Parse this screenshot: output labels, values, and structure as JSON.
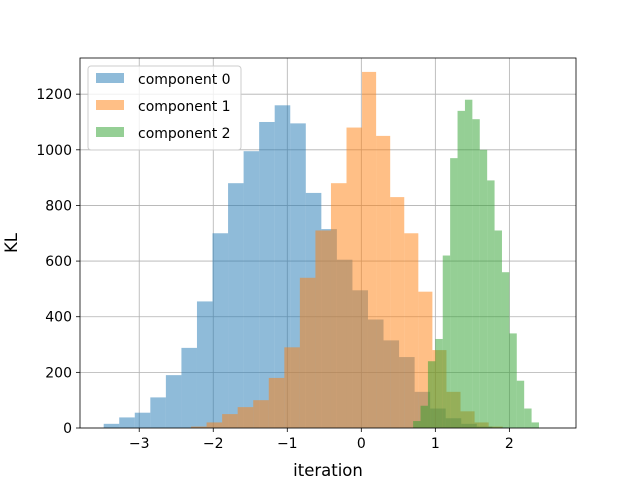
{
  "chart_data": {
    "type": "histogram",
    "title": "",
    "xlabel": "iteration",
    "ylabel": "KL",
    "xlim": [
      -3.8,
      2.9
    ],
    "ylim": [
      0,
      1330
    ],
    "xticks": [
      -3,
      -2,
      -1,
      0,
      1,
      2
    ],
    "yticks": [
      0,
      200,
      400,
      600,
      800,
      1000,
      1200
    ],
    "grid": true,
    "legend_position": "upper-left",
    "series": [
      {
        "name": "component 0",
        "color": "#1f77b4",
        "bin_edges": [
          -3.48,
          -3.27,
          -3.06,
          -2.85,
          -2.64,
          -2.43,
          -2.22,
          -2.01,
          -1.8,
          -1.59,
          -1.38,
          -1.17,
          -0.96,
          -0.75,
          -0.54,
          -0.33,
          -0.12,
          0.09,
          0.3,
          0.51,
          0.72,
          0.93,
          1.14,
          1.35,
          1.56,
          1.77,
          1.98
        ],
        "counts": [
          15,
          38,
          55,
          110,
          190,
          288,
          455,
          700,
          880,
          995,
          1100,
          1160,
          1095,
          845,
          715,
          605,
          495,
          390,
          315,
          255,
          130,
          70,
          35,
          15,
          5,
          2
        ]
      },
      {
        "name": "component 1",
        "color": "#ff7f0e",
        "bin_edges": [
          -2.3,
          -2.09,
          -1.88,
          -1.67,
          -1.46,
          -1.25,
          -1.04,
          -0.83,
          -0.62,
          -0.41,
          -0.2,
          0.01,
          0.2,
          0.39,
          0.58,
          0.77,
          0.96,
          1.15,
          1.34,
          1.53,
          1.72,
          1.91
        ],
        "counts": [
          5,
          20,
          50,
          75,
          100,
          180,
          290,
          540,
          710,
          880,
          1080,
          1280,
          1050,
          830,
          700,
          490,
          280,
          130,
          60,
          20,
          5
        ]
      },
      {
        "name": "component 2",
        "color": "#2ca02c",
        "bin_edges": [
          0.7,
          0.8,
          0.9,
          1.0,
          1.1,
          1.2,
          1.3,
          1.4,
          1.5,
          1.6,
          1.7,
          1.8,
          1.9,
          2.0,
          2.1,
          2.2,
          2.3,
          2.4
        ],
        "counts": [
          25,
          80,
          240,
          320,
          620,
          970,
          1140,
          1180,
          1110,
          1000,
          890,
          710,
          560,
          340,
          170,
          70,
          20
        ]
      }
    ]
  }
}
